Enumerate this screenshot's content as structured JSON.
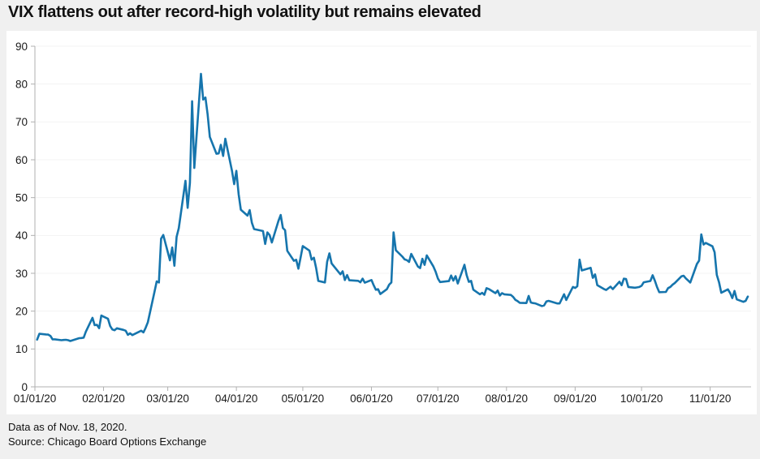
{
  "header": {
    "title": "VIX flattens out after record-high volatility but remains elevated"
  },
  "footer": {
    "line1": "Data as of Nov. 18, 2020.",
    "line2": "Source: Chicago Board Options Exchange"
  },
  "colors": {
    "page_background": "#f0f0f0",
    "panel_background": "#ffffff",
    "line": "#1675ad",
    "grid": "#f3f3f3",
    "axis": "#b0b0b0",
    "tick_text": "#1a1a1a",
    "title_text": "#111111"
  },
  "chart_data": {
    "type": "line",
    "title": "VIX flattens out after record-high volatility but remains elevated",
    "xlabel": "",
    "ylabel": "",
    "ylim": [
      0,
      90
    ],
    "y_ticks": [
      0,
      10,
      20,
      30,
      40,
      50,
      60,
      70,
      80,
      90
    ],
    "x_tick_labels": [
      "01/01/20",
      "02/01/20",
      "03/01/20",
      "04/01/20",
      "05/01/20",
      "06/01/20",
      "07/01/20",
      "08/01/20",
      "09/01/20",
      "10/01/20",
      "11/01/20"
    ],
    "x_tick_days": [
      0,
      31,
      60,
      91,
      121,
      152,
      182,
      213,
      244,
      274,
      305
    ],
    "x_domain_days": [
      0,
      322
    ],
    "grid": "horizontal",
    "legend": "none",
    "line_color": "#1675ad",
    "grid_color": "#f3f3f3",
    "axis_color": "#b0b0b0",
    "series": [
      {
        "name": "VIX",
        "dates": [
          "01/02",
          "01/03",
          "01/06",
          "01/07",
          "01/08",
          "01/09",
          "01/10",
          "01/13",
          "01/14",
          "01/15",
          "01/16",
          "01/17",
          "01/21",
          "01/22",
          "01/23",
          "01/24",
          "01/27",
          "01/28",
          "01/29",
          "01/30",
          "01/31",
          "02/03",
          "02/04",
          "02/05",
          "02/06",
          "02/07",
          "02/10",
          "02/11",
          "02/12",
          "02/13",
          "02/14",
          "02/18",
          "02/19",
          "02/20",
          "02/21",
          "02/24",
          "02/25",
          "02/26",
          "02/27",
          "02/28",
          "03/02",
          "03/03",
          "03/04",
          "03/05",
          "03/06",
          "03/09",
          "03/10",
          "03/11",
          "03/12",
          "03/13",
          "03/16",
          "03/17",
          "03/18",
          "03/19",
          "03/20",
          "03/23",
          "03/24",
          "03/25",
          "03/26",
          "03/27",
          "03/30",
          "03/31",
          "04/01",
          "04/02",
          "04/03",
          "04/06",
          "04/07",
          "04/08",
          "04/09",
          "04/13",
          "04/14",
          "04/15",
          "04/16",
          "04/17",
          "04/20",
          "04/21",
          "04/22",
          "04/23",
          "04/24",
          "04/27",
          "04/28",
          "04/29",
          "04/30",
          "05/01",
          "05/04",
          "05/05",
          "05/06",
          "05/07",
          "05/08",
          "05/11",
          "05/12",
          "05/13",
          "05/14",
          "05/15",
          "05/18",
          "05/19",
          "05/20",
          "05/21",
          "05/22",
          "05/26",
          "05/27",
          "05/28",
          "05/29",
          "06/01",
          "06/02",
          "06/03",
          "06/04",
          "06/05",
          "06/08",
          "06/09",
          "06/10",
          "06/11",
          "06/12",
          "06/15",
          "06/16",
          "06/17",
          "06/18",
          "06/19",
          "06/22",
          "06/23",
          "06/24",
          "06/25",
          "06/26",
          "06/29",
          "06/30",
          "07/01",
          "07/02",
          "07/06",
          "07/07",
          "07/08",
          "07/09",
          "07/10",
          "07/13",
          "07/14",
          "07/15",
          "07/16",
          "07/17",
          "07/20",
          "07/21",
          "07/22",
          "07/23",
          "07/24",
          "07/27",
          "07/28",
          "07/29",
          "07/30",
          "07/31",
          "08/03",
          "08/04",
          "08/05",
          "08/06",
          "08/07",
          "08/10",
          "08/11",
          "08/12",
          "08/13",
          "08/14",
          "08/17",
          "08/18",
          "08/19",
          "08/20",
          "08/21",
          "08/24",
          "08/25",
          "08/26",
          "08/27",
          "08/28",
          "08/31",
          "09/01",
          "09/02",
          "09/03",
          "09/04",
          "09/08",
          "09/09",
          "09/10",
          "09/11",
          "09/14",
          "09/15",
          "09/16",
          "09/17",
          "09/18",
          "09/21",
          "09/22",
          "09/23",
          "09/24",
          "09/25",
          "09/28",
          "09/29",
          "09/30",
          "10/01",
          "10/02",
          "10/05",
          "10/06",
          "10/07",
          "10/08",
          "10/09",
          "10/12",
          "10/13",
          "10/14",
          "10/15",
          "10/16",
          "10/19",
          "10/20",
          "10/21",
          "10/22",
          "10/23",
          "10/26",
          "10/27",
          "10/28",
          "10/29",
          "10/30",
          "11/02",
          "11/03",
          "11/04",
          "11/05",
          "11/06",
          "11/09",
          "11/10",
          "11/11",
          "11/12",
          "11/13",
          "11/16",
          "11/17",
          "11/18"
        ],
        "values": [
          12.47,
          14.02,
          13.85,
          13.79,
          13.45,
          12.54,
          12.56,
          12.32,
          12.39,
          12.42,
          12.32,
          12.1,
          12.85,
          12.91,
          12.98,
          14.56,
          18.23,
          16.28,
          16.39,
          15.49,
          18.84,
          17.97,
          16.05,
          15.15,
          14.96,
          15.47,
          15.04,
          14.83,
          13.74,
          14.15,
          13.68,
          14.83,
          14.38,
          15.56,
          17.08,
          25.03,
          27.85,
          27.56,
          39.16,
          40.11,
          33.42,
          36.82,
          31.99,
          39.62,
          41.94,
          54.46,
          47.3,
          53.9,
          75.47,
          57.83,
          82.69,
          75.91,
          76.45,
          72.0,
          66.04,
          61.59,
          61.67,
          63.95,
          61.0,
          65.54,
          57.08,
          53.54,
          57.06,
          50.91,
          46.8,
          45.24,
          46.7,
          43.35,
          41.67,
          41.17,
          37.76,
          40.79,
          40.11,
          38.15,
          43.83,
          45.41,
          41.98,
          41.38,
          35.93,
          33.29,
          33.57,
          31.23,
          34.15,
          37.19,
          35.97,
          33.61,
          34.12,
          31.44,
          27.98,
          27.57,
          33.04,
          35.28,
          32.61,
          31.89,
          29.72,
          30.53,
          28.23,
          29.53,
          28.16,
          28.01,
          27.62,
          28.59,
          27.51,
          28.23,
          26.84,
          25.66,
          25.81,
          24.52,
          25.81,
          27.0,
          27.57,
          40.79,
          36.09,
          34.4,
          33.67,
          33.47,
          32.99,
          35.12,
          31.77,
          31.37,
          33.84,
          32.22,
          34.73,
          31.78,
          30.43,
          28.62,
          27.68,
          27.94,
          29.43,
          28.08,
          29.26,
          27.29,
          32.24,
          29.52,
          27.76,
          28.0,
          25.68,
          24.46,
          24.84,
          24.32,
          26.08,
          25.84,
          24.74,
          25.44,
          24.1,
          24.76,
          24.46,
          24.28,
          23.76,
          22.99,
          22.65,
          22.21,
          22.13,
          24.03,
          22.28,
          22.13,
          22.05,
          21.35,
          21.51,
          22.54,
          22.72,
          22.54,
          22.03,
          22.03,
          23.27,
          24.47,
          22.96,
          26.41,
          26.12,
          26.57,
          33.6,
          30.75,
          31.46,
          28.81,
          29.71,
          26.87,
          25.85,
          25.59,
          26.04,
          26.46,
          25.83,
          27.78,
          26.86,
          28.58,
          28.51,
          26.38,
          26.19,
          26.27,
          26.37,
          26.7,
          27.63,
          27.96,
          29.48,
          28.06,
          26.36,
          25.0,
          25.07,
          26.07,
          26.4,
          26.97,
          27.41,
          29.18,
          29.35,
          28.65,
          28.11,
          27.55,
          32.46,
          33.35,
          40.28,
          37.59,
          38.02,
          37.13,
          35.55,
          29.57,
          27.58,
          24.86,
          25.75,
          24.8,
          23.45,
          25.35,
          23.1,
          22.45,
          22.71,
          23.84
        ]
      }
    ]
  }
}
